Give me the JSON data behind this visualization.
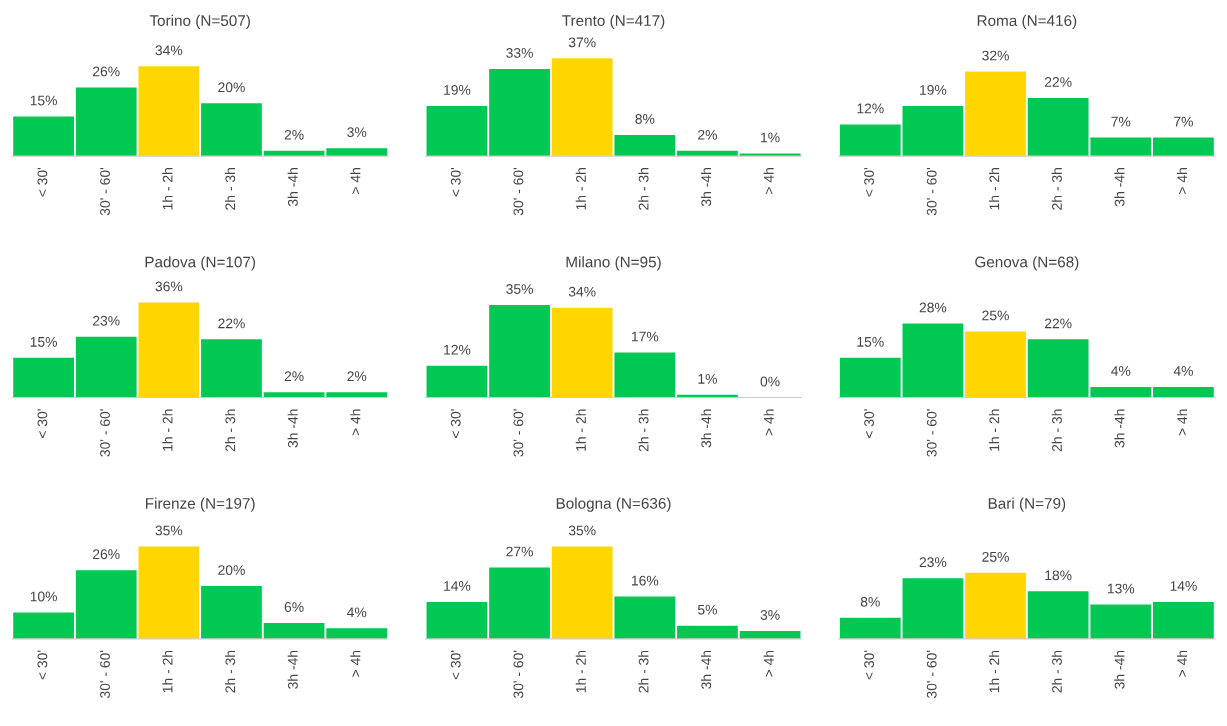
{
  "chart_data": [
    {
      "type": "bar",
      "title": "Torino (N=507)",
      "categories": [
        "< 30'",
        "30' - 60'",
        "1h - 2h",
        "2h - 3h",
        "3h -4h",
        "> 4h"
      ],
      "values": [
        15,
        26,
        34,
        20,
        2,
        3
      ],
      "value_labels": [
        "15%",
        "26%",
        "34%",
        "20%",
        "2%",
        "3%"
      ],
      "colors": [
        "#00c853",
        "#00c853",
        "#ffd600",
        "#00c853",
        "#00c853",
        "#00c853"
      ]
    },
    {
      "type": "bar",
      "title": "Trento (N=417)",
      "categories": [
        "< 30'",
        "30' - 60'",
        "1h - 2h",
        "2h - 3h",
        "3h -4h",
        "> 4h"
      ],
      "values": [
        19,
        33,
        37,
        8,
        2,
        1
      ],
      "value_labels": [
        "19%",
        "33%",
        "37%",
        "8%",
        "2%",
        "1%"
      ],
      "colors": [
        "#00c853",
        "#00c853",
        "#ffd600",
        "#00c853",
        "#00c853",
        "#00c853"
      ]
    },
    {
      "type": "bar",
      "title": "Roma (N=416)",
      "categories": [
        "< 30'",
        "30' - 60'",
        "1h - 2h",
        "2h - 3h",
        "3h -4h",
        "> 4h"
      ],
      "values": [
        12,
        19,
        32,
        22,
        7,
        7
      ],
      "value_labels": [
        "12%",
        "19%",
        "32%",
        "22%",
        "7%",
        "7%"
      ],
      "colors": [
        "#00c853",
        "#00c853",
        "#ffd600",
        "#00c853",
        "#00c853",
        "#00c853"
      ]
    },
    {
      "type": "bar",
      "title": "Padova (N=107)",
      "categories": [
        "< 30'",
        "30' - 60'",
        "1h - 2h",
        "2h - 3h",
        "3h -4h",
        "> 4h"
      ],
      "values": [
        15,
        23,
        36,
        22,
        2,
        2
      ],
      "value_labels": [
        "15%",
        "23%",
        "36%",
        "22%",
        "2%",
        "2%"
      ],
      "colors": [
        "#00c853",
        "#00c853",
        "#ffd600",
        "#00c853",
        "#00c853",
        "#00c853"
      ]
    },
    {
      "type": "bar",
      "title": "Milano (N=95)",
      "categories": [
        "< 30'",
        "30' - 60'",
        "1h - 2h",
        "2h - 3h",
        "3h -4h",
        "> 4h"
      ],
      "values": [
        12,
        35,
        34,
        17,
        1,
        0
      ],
      "value_labels": [
        "12%",
        "35%",
        "34%",
        "17%",
        "1%",
        "0%"
      ],
      "colors": [
        "#00c853",
        "#00c853",
        "#ffd600",
        "#00c853",
        "#00c853",
        "#00c853"
      ]
    },
    {
      "type": "bar",
      "title": "Genova (N=68)",
      "categories": [
        "< 30'",
        "30' - 60'",
        "1h - 2h",
        "2h - 3h",
        "3h -4h",
        "> 4h"
      ],
      "values": [
        15,
        28,
        25,
        22,
        4,
        4
      ],
      "value_labels": [
        "15%",
        "28%",
        "25%",
        "22%",
        "4%",
        "4%"
      ],
      "colors": [
        "#00c853",
        "#00c853",
        "#ffd600",
        "#00c853",
        "#00c853",
        "#00c853"
      ]
    },
    {
      "type": "bar",
      "title": "Firenze (N=197)",
      "categories": [
        "< 30'",
        "30' - 60'",
        "1h - 2h",
        "2h - 3h",
        "3h -4h",
        "> 4h"
      ],
      "values": [
        10,
        26,
        35,
        20,
        6,
        4
      ],
      "value_labels": [
        "10%",
        "26%",
        "35%",
        "20%",
        "6%",
        "4%"
      ],
      "colors": [
        "#00c853",
        "#00c853",
        "#ffd600",
        "#00c853",
        "#00c853",
        "#00c853"
      ]
    },
    {
      "type": "bar",
      "title": "Bologna (N=636)",
      "categories": [
        "< 30'",
        "30' - 60'",
        "1h - 2h",
        "2h - 3h",
        "3h -4h",
        "> 4h"
      ],
      "values": [
        14,
        27,
        35,
        16,
        5,
        3
      ],
      "value_labels": [
        "14%",
        "27%",
        "35%",
        "16%",
        "5%",
        "3%"
      ],
      "colors": [
        "#00c853",
        "#00c853",
        "#ffd600",
        "#00c853",
        "#00c853",
        "#00c853"
      ]
    },
    {
      "type": "bar",
      "title": "Bari (N=79)",
      "categories": [
        "< 30'",
        "30' - 60'",
        "1h - 2h",
        "2h - 3h",
        "3h -4h",
        "> 4h"
      ],
      "values": [
        8,
        23,
        25,
        18,
        13,
        14
      ],
      "value_labels": [
        "8%",
        "23%",
        "25%",
        "18%",
        "13%",
        "14%"
      ],
      "colors": [
        "#00c853",
        "#00c853",
        "#ffd600",
        "#00c853",
        "#00c853",
        "#00c853"
      ]
    }
  ]
}
